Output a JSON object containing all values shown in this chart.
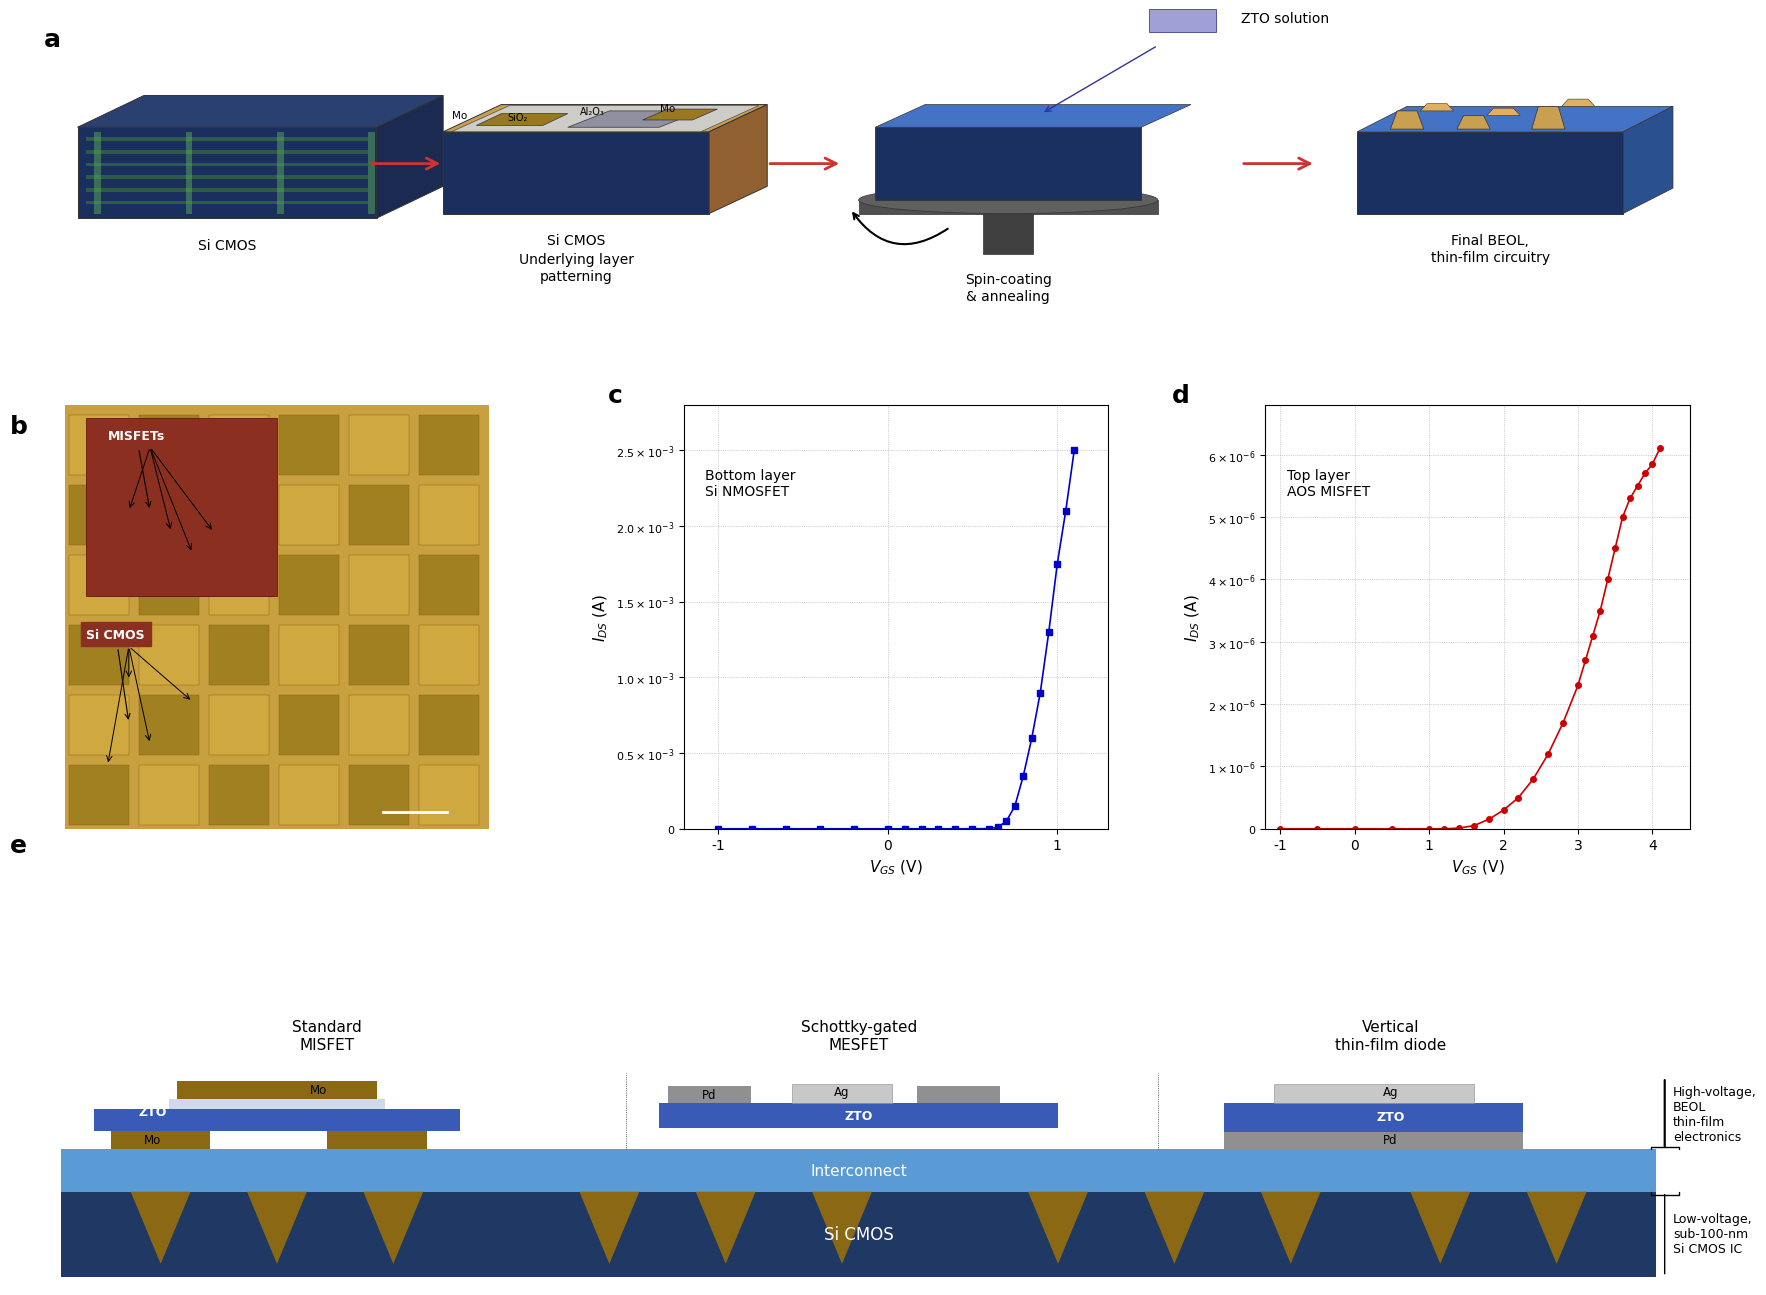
{
  "panel_a_labels": {
    "si_cmos": "Si CMOS",
    "underlying": "Underlying layer\npatterning",
    "spin_coating": "Spin-coating\n& annealing",
    "final_beol": "Final BEOL,\nthin-film circuitry",
    "zto_solution": "ZTO solution",
    "sio2": "SiO₂",
    "mo_top": "Mo",
    "mo_bot": "Mo",
    "al2o3": "Al₂O₃"
  },
  "panel_b_labels": {
    "misfets": "MISFETs",
    "si_cmos": "Si CMOS"
  },
  "panel_c": {
    "title": "Bottom layer\nSi NMOSFET",
    "xlabel": "$V_{GS}$ (V)",
    "ylabel": "$I_{DS}$ (A)",
    "x": [
      -1.0,
      -0.8,
      -0.6,
      -0.4,
      -0.2,
      0.0,
      0.1,
      0.2,
      0.3,
      0.4,
      0.5,
      0.6,
      0.65,
      0.7,
      0.75,
      0.8,
      0.85,
      0.9,
      0.95,
      1.0,
      1.05,
      1.1
    ],
    "y": [
      0.0,
      0.0,
      0.0,
      0.0,
      0.0,
      0.0,
      0.0,
      0.0,
      0.0,
      0.0,
      1e-07,
      1e-06,
      1e-05,
      5e-05,
      0.00015,
      0.00035,
      0.0006,
      0.0009,
      0.0013,
      0.00175,
      0.0021,
      0.0025
    ],
    "ylim": [
      0,
      0.0028
    ],
    "xlim": [
      -1.2,
      1.2
    ],
    "yticks": [
      0,
      0.0005,
      0.001,
      0.0015,
      0.002,
      0.0025
    ],
    "ytick_labels": [
      "0",
      "0.5 × 10⁻³",
      "1.0 × 10⁻³",
      "1.5 × 10⁻³",
      "2.0 × 10⁻³",
      "2.5 × 10⁻³"
    ],
    "color": "#0000CC",
    "marker": "s"
  },
  "panel_d": {
    "title": "Top layer\nAOS MISFET",
    "xlabel": "$V_{GS}$ (V)",
    "ylabel": "$I_{DS}$ (A)",
    "x": [
      -1.0,
      -0.5,
      0.0,
      0.5,
      1.0,
      1.2,
      1.4,
      1.6,
      1.8,
      2.0,
      2.2,
      2.4,
      2.6,
      2.8,
      3.0,
      3.1,
      3.2,
      3.3,
      3.4,
      3.5,
      3.6,
      3.7,
      3.8,
      3.9,
      4.0,
      4.1
    ],
    "y": [
      0.0,
      0.0,
      0.0,
      0.0,
      0.0,
      0.0,
      1e-08,
      5e-08,
      1.5e-07,
      3e-07,
      5e-07,
      8e-07,
      1.2e-06,
      1.7e-06,
      2.3e-06,
      2.7e-06,
      3.1e-06,
      3.5e-06,
      4e-06,
      4.5e-06,
      5e-06,
      5.3e-06,
      5.5e-06,
      5.7e-06,
      5.85e-06,
      6.1e-06
    ],
    "ylim": [
      0,
      6.5e-06
    ],
    "xlim": [
      -1.2,
      4.5
    ],
    "yticks": [
      0,
      1e-06,
      2e-06,
      3e-06,
      4e-06,
      5e-06,
      6e-06
    ],
    "ytick_labels": [
      "0",
      "1 × 10⁻⁶",
      "2 × 10⁻⁶",
      "3 × 10⁻⁶",
      "4 × 10⁻⁶",
      "5 × 10⁻⁶",
      "6 × 10⁻⁶"
    ],
    "color": "#CC0000",
    "marker": "o"
  },
  "panel_e": {
    "labels": {
      "standard_misfet": "Standard\nMISFET",
      "schottky_mesfet": "Schottky-gated\nMESFET",
      "vertical_diode": "Vertical\nthin-film diode",
      "interconnect": "Interconnect",
      "si_cmos": "Si CMOS",
      "hv_beol": "High-voltage,\nBEOL\nthin-film\nelectronics",
      "lv_cmos": "Low-voltage,\nsub-100-nm\nSi CMOS IC",
      "mo_left": "Mo",
      "mo_right": "Mo",
      "zto_left": "ZTO",
      "pd_center": "Pd",
      "ag_center": "Ag",
      "zto_center": "ZTO",
      "ag_right": "Ag",
      "zto_right": "ZTO",
      "pd_right": "Pd"
    },
    "colors": {
      "zto_blue": "#4472C4",
      "mo_brown": "#8B6914",
      "pd_gray": "#808080",
      "ag_silver": "#C0C0C0",
      "interconnect_blue": "#5B9BD5",
      "si_cmos_darkblue": "#1F3864",
      "white": "#FFFFFF",
      "light_gray": "#D9D9D9"
    }
  },
  "figure_labels": {
    "a": "a",
    "b": "b",
    "c": "c",
    "d": "d",
    "e": "e"
  },
  "arrow_color": "#CC0000"
}
